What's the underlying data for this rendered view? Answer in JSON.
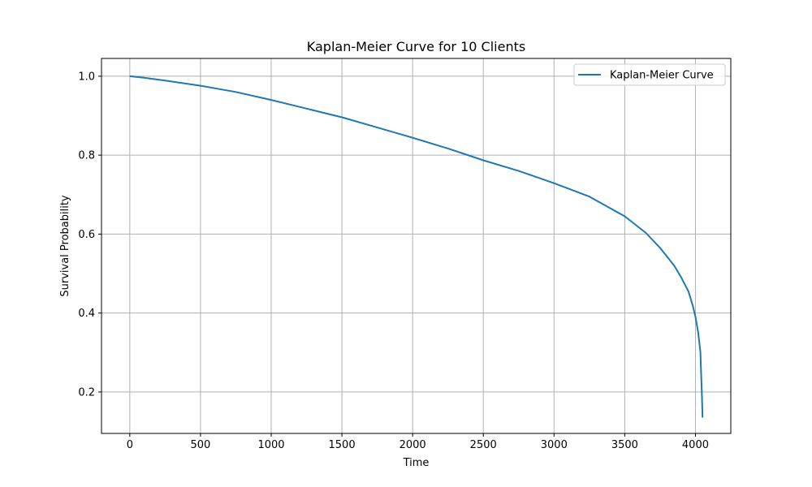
{
  "chart_data": {
    "type": "line",
    "title": "Kaplan-Meier Curve for 10 Clients",
    "xlabel": "Time",
    "ylabel": "Survival Probability",
    "xlim": [
      -200,
      4250
    ],
    "ylim": [
      0.095,
      1.045
    ],
    "xticks": [
      0,
      500,
      1000,
      1500,
      2000,
      2500,
      3000,
      3500,
      4000
    ],
    "xtick_labels": [
      "0",
      "500",
      "1000",
      "1500",
      "2000",
      "2500",
      "3000",
      "3500",
      "4000"
    ],
    "yticks": [
      0.2,
      0.4,
      0.6,
      0.8,
      1.0
    ],
    "ytick_labels": [
      "0.2",
      "0.4",
      "0.6",
      "0.8",
      "1.0"
    ],
    "grid": true,
    "legend_position": "top-right",
    "series": [
      {
        "name": "Kaplan-Meier Curve",
        "color": "#1f77b4",
        "x": [
          0,
          100,
          250,
          500,
          750,
          1000,
          1250,
          1500,
          1750,
          2000,
          2250,
          2500,
          2750,
          3000,
          3250,
          3500,
          3650,
          3750,
          3850,
          3900,
          3950,
          3980,
          4000,
          4020,
          4035,
          4040,
          4045,
          4050
        ],
        "y": [
          1.0,
          0.996,
          0.989,
          0.976,
          0.96,
          0.94,
          0.918,
          0.896,
          0.87,
          0.844,
          0.817,
          0.787,
          0.76,
          0.729,
          0.695,
          0.645,
          0.603,
          0.565,
          0.52,
          0.49,
          0.455,
          0.42,
          0.39,
          0.35,
          0.3,
          0.25,
          0.2,
          0.135
        ]
      }
    ]
  }
}
